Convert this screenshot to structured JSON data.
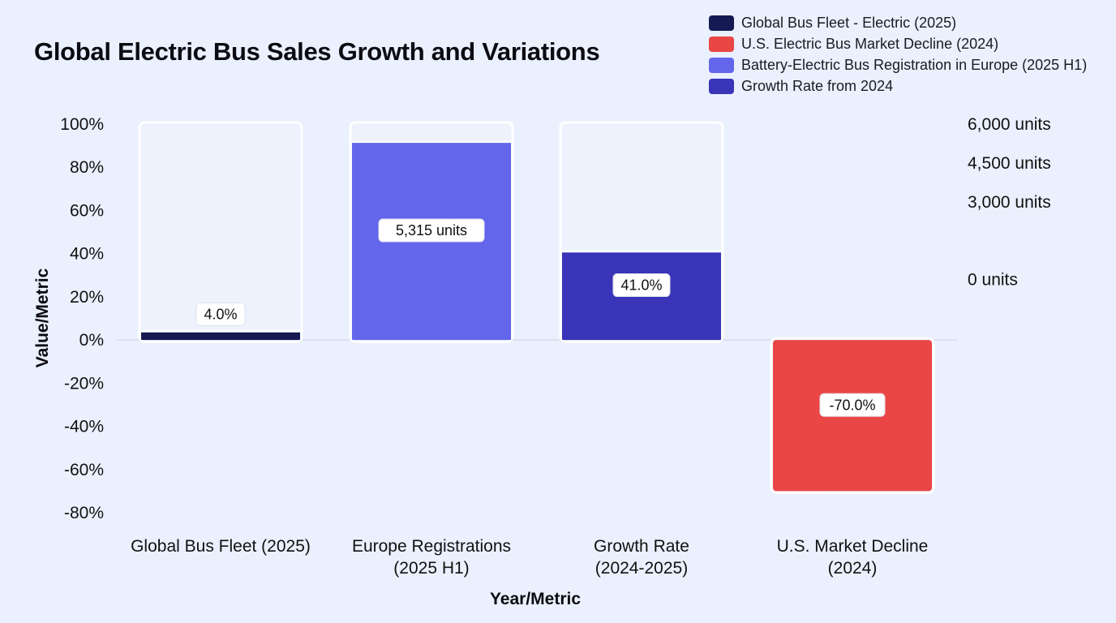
{
  "chart_data": {
    "type": "bar",
    "title": "Global Electric Bus Sales Growth and Variations",
    "xlabel": "Year/Metric",
    "ylabel": "Value/Metric",
    "ylim": [
      -80,
      100
    ],
    "yticks": [
      "100%",
      "80%",
      "60%",
      "40%",
      "20%",
      "0%",
      "-20%",
      "-40%",
      "-60%",
      "-80%"
    ],
    "y2lim": [
      -9000,
      6000
    ],
    "y2ticks": [
      {
        "value": 6000,
        "label": "6,000 units"
      },
      {
        "value": 4500,
        "label": "4,500 units"
      },
      {
        "value": 3000,
        "label": "3,000 units"
      },
      {
        "value": 0,
        "label": "0 units"
      }
    ],
    "grid": false,
    "legend_position": "top-right",
    "categories": [
      [
        "Global Bus Fleet (2025)"
      ],
      [
        "Europe Registrations",
        "(2025 H1)"
      ],
      [
        "Growth Rate",
        "(2024-2025)"
      ],
      [
        "U.S. Market Decline",
        "(2024)"
      ]
    ],
    "series": [
      {
        "name": "Global Bus Fleet - Electric (2025)",
        "value": 4.0,
        "axis": "left",
        "label": "4.0%",
        "color": "#161a52"
      },
      {
        "name": "Battery-Electric Bus Registration in Europe (2025 H1)",
        "value": 5315,
        "axis": "right",
        "label": "5,315 units",
        "color": "#6366ea"
      },
      {
        "name": "Growth Rate from 2024",
        "value": 41.0,
        "axis": "left",
        "label": "41.0%",
        "color": "#3a34b8"
      },
      {
        "name": "U.S. Electric Bus Market Decline (2024)",
        "value": -70.0,
        "axis": "left",
        "label": "-70.0%",
        "color": "#ea4646"
      }
    ],
    "legend": [
      {
        "name": "Global Bus Fleet - Electric (2025)",
        "color": "#161a52"
      },
      {
        "name": "U.S. Electric Bus Market Decline (2024)",
        "color": "#ea4646"
      },
      {
        "name": "Battery-Electric Bus Registration in Europe (2025 H1)",
        "color": "#6366ea"
      },
      {
        "name": "Growth Rate from 2024",
        "color": "#3a34b8"
      }
    ]
  }
}
